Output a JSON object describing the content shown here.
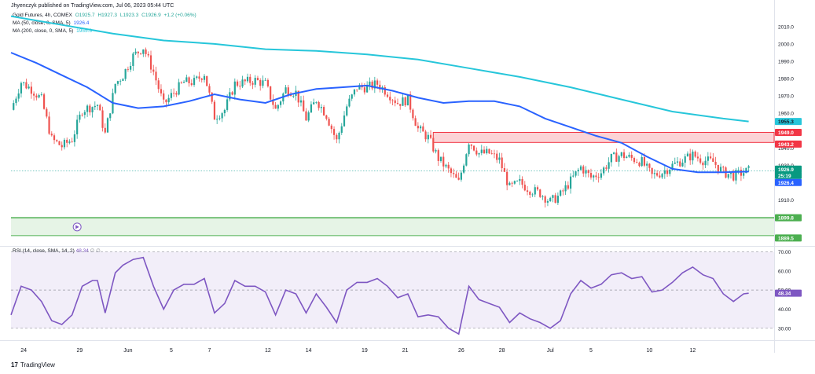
{
  "header": {
    "published": "Jhyenczyk published on TradingView.com, Jul 06, 2023 05:44 UTC"
  },
  "legend": {
    "symbol": "Gold Futures, 4h, COMEX",
    "open": "O1925.7",
    "high": "H1927.3",
    "low": "L1923.3",
    "close": "C1926.9",
    "change": "+1.2 (+0.06%)",
    "ma50_label": "MA (50, close, 0, SMA, 5)",
    "ma50_value": "1926.4",
    "ma200_label": "MA (200, close, 0, SMA, 5)",
    "ma200_value": "1955.3",
    "rsi_label": "RSI (14, close, SMA, 14, 2)",
    "rsi_value": "48.34",
    "rsi_extra": "∅ ∅"
  },
  "watermark": "TradingView",
  "colors": {
    "up": "#26a69a",
    "down": "#ef5350",
    "ma50": "#2962ff",
    "ma200": "#26c6da",
    "rsi": "#7e57c2",
    "support": "#4caf50",
    "resistance": "#f23645"
  },
  "price_axis": {
    "ticks": [
      "2010.0",
      "2000.0",
      "1990.0",
      "1980.0",
      "1970.0",
      "1960.0",
      "1950.0",
      "1940.0",
      "1930.0",
      "1920.0",
      "1910.0"
    ],
    "badges": {
      "ma200": "1955.3",
      "zone_top": "1949.0",
      "zone_bottom": "1943.2",
      "last_price": "1926.9",
      "countdown": "25:19",
      "ma50": "1926.4",
      "support_top": "1899.8",
      "support_bottom": "1889.5"
    }
  },
  "rsi_axis": {
    "ticks": [
      "70.00",
      "60.00",
      "50.00",
      "40.00",
      "30.00"
    ],
    "badge": "48.34"
  },
  "time_axis": {
    "labels": [
      "24",
      "29",
      "Jun",
      "5",
      "7",
      "12",
      "14",
      "19",
      "21",
      "26",
      "28",
      "Jul",
      "5",
      "10",
      "12"
    ]
  },
  "chart_data": [
    {
      "type": "candlestick",
      "title": "Gold Futures, 4h, COMEX",
      "ylim": [
        1884,
        2019
      ],
      "x_index_range": [
        0,
        300
      ],
      "resistance_zone": [
        1943.2,
        1949.0
      ],
      "support_zone": [
        1889.5,
        1899.8
      ],
      "last_price": 1926.9,
      "series": [
        {
          "name": "MA (50, close, 0, SMA, 5)",
          "x": [
            0,
            10,
            20,
            30,
            40,
            50,
            60,
            70,
            80,
            90,
            100,
            110,
            120,
            130,
            140,
            150,
            160,
            170,
            180,
            190,
            200,
            210,
            220,
            230,
            240,
            250,
            260,
            270,
            280,
            290
          ],
          "values": [
            1995,
            1989,
            1982,
            1975,
            1966,
            1963,
            1964,
            1967,
            1971,
            1968,
            1966,
            1971,
            1974,
            1975,
            1976,
            1973,
            1969,
            1966,
            1967,
            1967,
            1964,
            1957,
            1952,
            1947,
            1943,
            1935,
            1928,
            1926,
            1926,
            1926.4
          ]
        },
        {
          "name": "MA (200, close, 0, SMA, 5)",
          "x": [
            0,
            20,
            40,
            60,
            80,
            100,
            120,
            140,
            160,
            180,
            200,
            220,
            240,
            260,
            280,
            290
          ],
          "values": [
            2016,
            2011,
            2006,
            2002,
            2000,
            1997,
            1996,
            1994,
            1991,
            1986,
            1981,
            1975,
            1968,
            1961,
            1957,
            1955.3
          ]
        },
        {
          "name": "price",
          "x": [
            0,
            4,
            8,
            12,
            16,
            20,
            24,
            28,
            32,
            34,
            37,
            41,
            44,
            48,
            52,
            56,
            60,
            64,
            68,
            72,
            76,
            80,
            84,
            88,
            92,
            96,
            100,
            104,
            108,
            112,
            116,
            120,
            124,
            128,
            132,
            136,
            140,
            144,
            148,
            152,
            156,
            160,
            164,
            168,
            172,
            176,
            180,
            184,
            188,
            192,
            196,
            200,
            204,
            208,
            212,
            216,
            220,
            224,
            228,
            232,
            236,
            240,
            244,
            248,
            252,
            256,
            260,
            264,
            268,
            272,
            276,
            280,
            284,
            288,
            290
          ],
          "values": [
            1962,
            1978,
            1974,
            1968,
            1945,
            1941,
            1945,
            1962,
            1964,
            1965,
            1948,
            1977,
            1982,
            1993,
            1998,
            1984,
            1965,
            1972,
            1978,
            1978,
            1983,
            1958,
            1962,
            1977,
            1978,
            1979,
            1977,
            1962,
            1974,
            1972,
            1957,
            1968,
            1959,
            1944,
            1964,
            1975,
            1975,
            1977,
            1972,
            1966,
            1968,
            1951,
            1946,
            1934,
            1927,
            1920,
            1944,
            1937,
            1937,
            1933,
            1917,
            1920,
            1916,
            1914,
            1909,
            1913,
            1921,
            1929,
            1923,
            1926,
            1934,
            1936,
            1934,
            1932,
            1924,
            1926,
            1930,
            1933,
            1936,
            1933,
            1932,
            1926,
            1924,
            1926,
            1926.9
          ]
        }
      ],
      "xlabel": "",
      "ylabel": ""
    },
    {
      "type": "line",
      "title": "RSI (14, close, SMA, 14, 2)",
      "ylim": [
        25,
        71
      ],
      "bands": [
        30,
        50,
        70
      ],
      "series": [
        {
          "name": "RSI",
          "x": [
            0,
            4,
            8,
            12,
            16,
            20,
            24,
            28,
            32,
            34,
            37,
            41,
            44,
            48,
            52,
            56,
            60,
            64,
            68,
            72,
            76,
            80,
            84,
            88,
            92,
            96,
            100,
            104,
            108,
            112,
            116,
            120,
            124,
            128,
            132,
            136,
            140,
            144,
            148,
            152,
            156,
            160,
            164,
            168,
            172,
            176,
            180,
            184,
            188,
            192,
            196,
            200,
            204,
            208,
            212,
            216,
            220,
            224,
            228,
            232,
            236,
            240,
            244,
            248,
            252,
            256,
            260,
            264,
            268,
            272,
            276,
            280,
            284,
            288,
            290
          ],
          "values": [
            37,
            52,
            50,
            44,
            34,
            32,
            37,
            52,
            55,
            55,
            38,
            59,
            63,
            66,
            67,
            52,
            40,
            50,
            53,
            53,
            56,
            38,
            43,
            55,
            52,
            52,
            49,
            37,
            50,
            48,
            38,
            48,
            41,
            33,
            50,
            54,
            54,
            56,
            52,
            46,
            48,
            36,
            37,
            36,
            30,
            27,
            52,
            45,
            43,
            41,
            33,
            38,
            35,
            33,
            30,
            34,
            48,
            55,
            51,
            53,
            58,
            59,
            56,
            57,
            49,
            50,
            54,
            59,
            62,
            58,
            56,
            48,
            44,
            48,
            48.34
          ]
        }
      ],
      "xlabel": "",
      "ylabel": ""
    }
  ]
}
